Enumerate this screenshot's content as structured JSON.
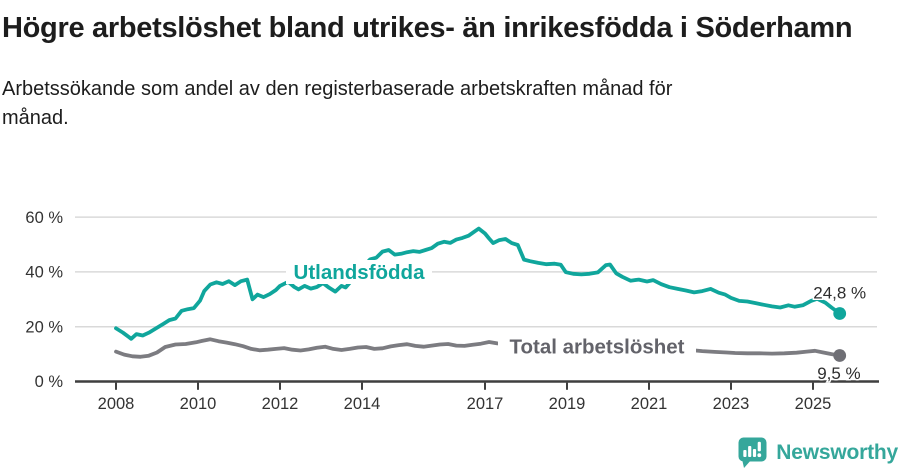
{
  "header": {
    "title": "Högre arbetslöshet bland utrikes- än inrikesfödda i Söderhamn",
    "subtitle": "Arbetssökande som andel av den registerbaserade arbetskraften månad för månad."
  },
  "chart_data": {
    "type": "line",
    "unit": "%",
    "x_axis": {
      "tick_years": [
        2008,
        2010,
        2012,
        2014,
        2017,
        2019,
        2021,
        2023,
        2025
      ],
      "tick_labels": [
        "2008",
        "2010",
        "2012",
        "2014",
        "2017",
        "2019",
        "2021",
        "2023",
        "2025"
      ],
      "range": [
        2008,
        2025.65
      ]
    },
    "y_axis": {
      "ticks": [
        0,
        20,
        40,
        60
      ],
      "tick_labels": [
        "0 %",
        "20 %",
        "40 %",
        "60 %"
      ],
      "range": [
        0,
        62
      ],
      "gridlines": true
    },
    "colors": {
      "accent_teal": "#10a69c",
      "line_gray": "#7c7c81",
      "gray_label": "#63636a",
      "gray_dot": "#6f6f75",
      "axis_text": "#333333",
      "gridline": "#d9d9d9",
      "axis_line": "#3f3f3f",
      "end_label_text": "#2d2d2d"
    },
    "series": [
      {
        "id": "utlandsfodda",
        "name": "Utlandsfödda",
        "color": "#10a69c",
        "end_label": "24,8 %",
        "last_value": 24.8,
        "points": [
          [
            2008.0,
            19.4
          ],
          [
            2008.17,
            17.8
          ],
          [
            2008.37,
            15.6
          ],
          [
            2008.5,
            17.3
          ],
          [
            2008.65,
            16.8
          ],
          [
            2008.8,
            17.8
          ],
          [
            2009.0,
            19.6
          ],
          [
            2009.15,
            21.0
          ],
          [
            2009.3,
            22.4
          ],
          [
            2009.45,
            23.0
          ],
          [
            2009.6,
            25.8
          ],
          [
            2009.75,
            26.4
          ],
          [
            2009.9,
            26.8
          ],
          [
            2010.05,
            29.5
          ],
          [
            2010.15,
            33.0
          ],
          [
            2010.3,
            35.4
          ],
          [
            2010.45,
            36.2
          ],
          [
            2010.6,
            35.6
          ],
          [
            2010.75,
            36.6
          ],
          [
            2010.9,
            35.2
          ],
          [
            2011.05,
            36.6
          ],
          [
            2011.2,
            37.2
          ],
          [
            2011.33,
            30.0
          ],
          [
            2011.45,
            31.7
          ],
          [
            2011.6,
            30.8
          ],
          [
            2011.75,
            31.9
          ],
          [
            2011.9,
            33.4
          ],
          [
            2012.0,
            34.9
          ],
          [
            2012.2,
            36.4
          ],
          [
            2012.35,
            34.5
          ],
          [
            2012.45,
            33.6
          ],
          [
            2012.6,
            34.9
          ],
          [
            2012.75,
            33.9
          ],
          [
            2012.9,
            34.5
          ],
          [
            2013.05,
            35.9
          ],
          [
            2013.2,
            34.2
          ],
          [
            2013.35,
            32.8
          ],
          [
            2013.5,
            34.9
          ],
          [
            2013.6,
            34.3
          ],
          [
            2013.75,
            36.9
          ],
          [
            2013.9,
            39.6
          ],
          [
            2014.05,
            42.2
          ],
          [
            2014.2,
            44.6
          ],
          [
            2014.35,
            45.2
          ],
          [
            2014.5,
            47.4
          ],
          [
            2014.65,
            48.0
          ],
          [
            2014.8,
            46.3
          ],
          [
            2014.95,
            46.6
          ],
          [
            2015.1,
            47.2
          ],
          [
            2015.25,
            47.6
          ],
          [
            2015.4,
            47.3
          ],
          [
            2015.55,
            48.0
          ],
          [
            2015.7,
            48.7
          ],
          [
            2015.85,
            50.3
          ],
          [
            2016.0,
            51.0
          ],
          [
            2016.15,
            50.6
          ],
          [
            2016.3,
            51.8
          ],
          [
            2016.45,
            52.4
          ],
          [
            2016.6,
            53.2
          ],
          [
            2016.75,
            54.8
          ],
          [
            2016.85,
            55.8
          ],
          [
            2017.0,
            54.0
          ],
          [
            2017.1,
            52.2
          ],
          [
            2017.2,
            50.5
          ],
          [
            2017.35,
            51.6
          ],
          [
            2017.5,
            52.0
          ],
          [
            2017.65,
            50.5
          ],
          [
            2017.8,
            49.8
          ],
          [
            2017.95,
            44.5
          ],
          [
            2018.1,
            43.9
          ],
          [
            2018.3,
            43.3
          ],
          [
            2018.5,
            42.8
          ],
          [
            2018.7,
            43.0
          ],
          [
            2018.85,
            42.6
          ],
          [
            2018.97,
            39.9
          ],
          [
            2019.15,
            39.3
          ],
          [
            2019.35,
            39.1
          ],
          [
            2019.55,
            39.3
          ],
          [
            2019.75,
            39.8
          ],
          [
            2019.95,
            42.5
          ],
          [
            2020.05,
            42.7
          ],
          [
            2020.2,
            39.5
          ],
          [
            2020.35,
            38.2
          ],
          [
            2020.55,
            36.8
          ],
          [
            2020.75,
            37.2
          ],
          [
            2020.95,
            36.5
          ],
          [
            2021.1,
            37.0
          ],
          [
            2021.3,
            35.5
          ],
          [
            2021.5,
            34.4
          ],
          [
            2021.7,
            33.8
          ],
          [
            2021.9,
            33.2
          ],
          [
            2022.1,
            32.5
          ],
          [
            2022.3,
            33.0
          ],
          [
            2022.5,
            33.8
          ],
          [
            2022.7,
            32.4
          ],
          [
            2022.85,
            31.8
          ],
          [
            2023.0,
            30.5
          ],
          [
            2023.2,
            29.4
          ],
          [
            2023.4,
            29.2
          ],
          [
            2023.6,
            28.6
          ],
          [
            2023.8,
            28.0
          ],
          [
            2024.0,
            27.4
          ],
          [
            2024.2,
            27.0
          ],
          [
            2024.4,
            27.8
          ],
          [
            2024.55,
            27.3
          ],
          [
            2024.75,
            27.8
          ],
          [
            2024.95,
            29.4
          ],
          [
            2025.1,
            30.2
          ],
          [
            2025.3,
            28.8
          ],
          [
            2025.45,
            27.0
          ],
          [
            2025.65,
            24.8
          ]
        ]
      },
      {
        "id": "total",
        "name": "Total arbetslöshet",
        "color": "#7c7c81",
        "label_color": "#63636a",
        "dot_color": "#6f6f75",
        "end_label": "9,5 %",
        "last_value": 9.5,
        "points": [
          [
            2008.0,
            10.9
          ],
          [
            2008.2,
            9.8
          ],
          [
            2008.4,
            9.2
          ],
          [
            2008.6,
            9.0
          ],
          [
            2008.8,
            9.4
          ],
          [
            2009.0,
            10.6
          ],
          [
            2009.2,
            12.6
          ],
          [
            2009.45,
            13.5
          ],
          [
            2009.7,
            13.7
          ],
          [
            2009.95,
            14.3
          ],
          [
            2010.1,
            14.8
          ],
          [
            2010.3,
            15.4
          ],
          [
            2010.5,
            14.7
          ],
          [
            2010.7,
            14.2
          ],
          [
            2010.9,
            13.6
          ],
          [
            2011.1,
            12.9
          ],
          [
            2011.3,
            11.9
          ],
          [
            2011.5,
            11.4
          ],
          [
            2011.7,
            11.6
          ],
          [
            2011.9,
            11.9
          ],
          [
            2012.1,
            12.2
          ],
          [
            2012.3,
            11.6
          ],
          [
            2012.5,
            11.3
          ],
          [
            2012.7,
            11.7
          ],
          [
            2012.9,
            12.3
          ],
          [
            2013.1,
            12.7
          ],
          [
            2013.3,
            11.9
          ],
          [
            2013.5,
            11.5
          ],
          [
            2013.7,
            11.9
          ],
          [
            2013.9,
            12.4
          ],
          [
            2014.1,
            12.6
          ],
          [
            2014.3,
            11.9
          ],
          [
            2014.5,
            12.1
          ],
          [
            2014.7,
            12.8
          ],
          [
            2014.9,
            13.3
          ],
          [
            2015.1,
            13.6
          ],
          [
            2015.3,
            13.0
          ],
          [
            2015.5,
            12.7
          ],
          [
            2015.7,
            13.1
          ],
          [
            2015.9,
            13.5
          ],
          [
            2016.1,
            13.7
          ],
          [
            2016.3,
            13.1
          ],
          [
            2016.5,
            13.0
          ],
          [
            2016.7,
            13.4
          ],
          [
            2016.9,
            13.8
          ],
          [
            2017.1,
            14.4
          ],
          [
            2017.3,
            13.9
          ],
          [
            2017.5,
            13.6
          ],
          [
            2017.7,
            13.5
          ],
          [
            2017.9,
            13.2
          ],
          [
            2018.1,
            13.0
          ],
          [
            2018.35,
            12.8
          ],
          [
            2018.6,
            12.9
          ],
          [
            2018.85,
            12.9
          ],
          [
            2019.1,
            13.0
          ],
          [
            2019.4,
            13.1
          ],
          [
            2019.7,
            13.3
          ],
          [
            2019.95,
            14.0
          ],
          [
            2020.2,
            13.7
          ],
          [
            2020.5,
            13.3
          ],
          [
            2020.8,
            13.0
          ],
          [
            2021.1,
            12.7
          ],
          [
            2021.4,
            12.3
          ],
          [
            2021.7,
            11.9
          ],
          [
            2022.0,
            11.5
          ],
          [
            2022.3,
            11.1
          ],
          [
            2022.6,
            10.8
          ],
          [
            2022.9,
            10.6
          ],
          [
            2023.1,
            10.4
          ],
          [
            2023.4,
            10.3
          ],
          [
            2023.7,
            10.3
          ],
          [
            2024.0,
            10.2
          ],
          [
            2024.3,
            10.3
          ],
          [
            2024.6,
            10.5
          ],
          [
            2024.85,
            10.9
          ],
          [
            2025.05,
            11.2
          ],
          [
            2025.25,
            10.6
          ],
          [
            2025.45,
            10.0
          ],
          [
            2025.65,
            9.5
          ]
        ]
      }
    ]
  },
  "footer": {
    "brand": "Newsworthy"
  }
}
